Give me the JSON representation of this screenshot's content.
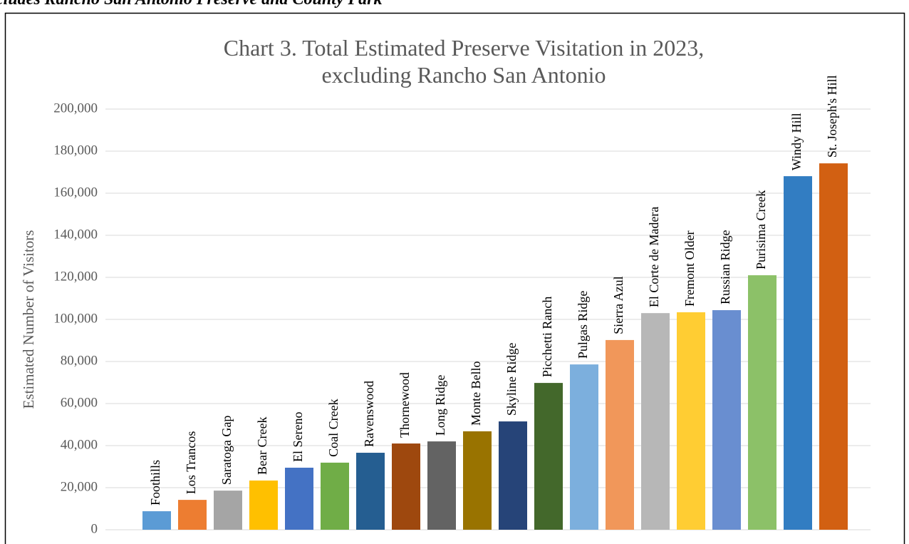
{
  "caption": "cludes Rancho San Antonio Preserve and County Park",
  "chart_data": {
    "type": "bar",
    "title": [
      "Chart 3. Total Estimated Preserve Visitation in 2023,",
      "excluding Rancho San Antonio"
    ],
    "y_label": "Estimated Number of Visitors",
    "categories": [
      "Foothills",
      "Los Trancos",
      "Saratoga Gap",
      "Bear Creek",
      "El Sereno",
      "Coal Creek",
      "Ravenswood",
      "Thornewood",
      "Long Ridge",
      "Monte Bello",
      "Skyline Ridge",
      "Picchetti Ranch",
      "Pulgas Ridge",
      "Sierra Azul",
      "El Corte de Madera",
      "Fremont Older",
      "Russian Ridge",
      "Purisima Creek",
      "Windy Hill",
      "St. Joseph's Hill"
    ],
    "values": [
      8800,
      14200,
      18600,
      23400,
      29500,
      31900,
      36600,
      41000,
      42000,
      46800,
      51500,
      69800,
      78600,
      90200,
      103000,
      103400,
      104400,
      121000,
      168100,
      174200
    ],
    "colors": [
      "#5b9bd5",
      "#ed7d31",
      "#a5a5a5",
      "#ffc000",
      "#4472c4",
      "#70ad47",
      "#255e91",
      "#9e480e",
      "#636363",
      "#997300",
      "#264478",
      "#43682b",
      "#7cafdd",
      "#f1975a",
      "#b7b7b7",
      "#ffcd33",
      "#698ed0",
      "#8cc168",
      "#327dc2",
      "#d26012"
    ],
    "ylim": [
      0,
      200000
    ],
    "yticks": [
      0,
      {
        "value": 20000,
        "label": "20,000"
      },
      {
        "value": 40000,
        "label": "40,000"
      },
      {
        "value": 60000,
        "label": "60,000"
      },
      {
        "value": 80000,
        "label": "80,000"
      },
      {
        "value": 100000,
        "label": "100,000"
      },
      {
        "value": 120000,
        "label": "120,000"
      },
      {
        "value": 140000,
        "label": "140,000"
      },
      {
        "value": 160000,
        "label": "160,000"
      },
      {
        "value": 180000,
        "label": "180,000"
      },
      {
        "value": 200000,
        "label": "200,000"
      }
    ],
    "grid": true
  }
}
